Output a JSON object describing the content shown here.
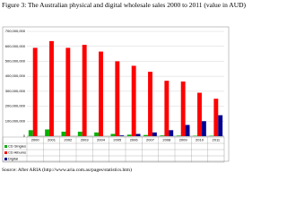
{
  "chart_data": {
    "type": "bar",
    "title": "Figure 3: The Australian physical and digital wholesale sales 2000 to 2011 (value in AUD)",
    "source": "Source: After ARIA (http://www.aria.com.au/pages/statistics.htm)",
    "categories": [
      "2000",
      "2001",
      "2002",
      "2003",
      "2004",
      "2005",
      "2006",
      "2007",
      "2008",
      "2009",
      "2010",
      "2011"
    ],
    "series": [
      {
        "name": "CD Singles",
        "color": "#00b000",
        "values": [
          40000000,
          45000000,
          30000000,
          30000000,
          25000000,
          15000000,
          10000000,
          8000000,
          5000000,
          4000000,
          3000000,
          3000000
        ]
      },
      {
        "name": "CD Albums",
        "color": "#ff0000",
        "values": [
          590000000,
          635000000,
          590000000,
          610000000,
          565000000,
          500000000,
          470000000,
          430000000,
          370000000,
          365000000,
          290000000,
          250000000
        ]
      },
      {
        "name": "Digital",
        "color": "#000090",
        "values": [
          0,
          0,
          0,
          0,
          0,
          5000000,
          15000000,
          25000000,
          40000000,
          75000000,
          100000000,
          140000000
        ]
      }
    ],
    "ylim": [
      0,
      700000000
    ],
    "yticks": [
      {
        "value": 0,
        "label": "0"
      },
      {
        "value": 100000000,
        "label": "100,000,000"
      },
      {
        "value": 200000000,
        "label": "200,000,000"
      },
      {
        "value": 300000000,
        "label": "300,000,000"
      },
      {
        "value": 400000000,
        "label": "400,000,000"
      },
      {
        "value": 500000000,
        "label": "500,000,000"
      },
      {
        "value": 600000000,
        "label": "600,000,000"
      },
      {
        "value": 700000000,
        "label": "700,000,000"
      }
    ],
    "grid": true
  }
}
